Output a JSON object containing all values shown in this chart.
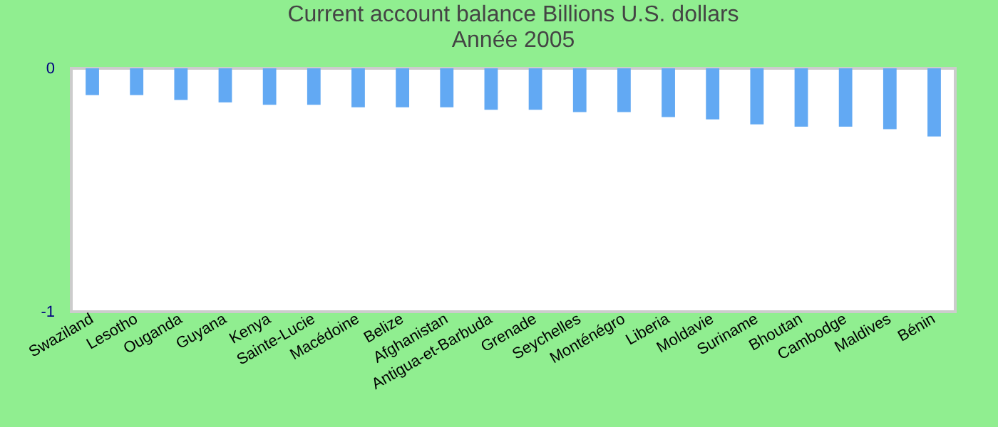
{
  "chart_data": {
    "type": "bar",
    "title": [
      "Current account balance Billions U.S. dollars",
      "Année 2005"
    ],
    "categories": [
      "Swaziland",
      "Lesotho",
      "Ouganda",
      "Guyana",
      "Kenya",
      "Sainte-Lucie",
      "Macédoine",
      "Belize",
      "Afghanistan",
      "Antigua-et-Barbuda",
      "Grenade",
      "Seychelles",
      "Monténégro",
      "Liberia",
      "Moldavie",
      "Suriname",
      "Bhoutan",
      "Cambodge",
      "Maldives",
      "Bénin"
    ],
    "values": [
      -0.11,
      -0.11,
      -0.13,
      -0.14,
      -0.15,
      -0.15,
      -0.16,
      -0.16,
      -0.16,
      -0.17,
      -0.17,
      -0.18,
      -0.18,
      -0.2,
      -0.21,
      -0.23,
      -0.24,
      -0.24,
      -0.25,
      -0.28
    ],
    "color": "#62a9f3",
    "ylim": [
      -1,
      0
    ],
    "yticks": [
      -1,
      0
    ],
    "grid": false
  }
}
